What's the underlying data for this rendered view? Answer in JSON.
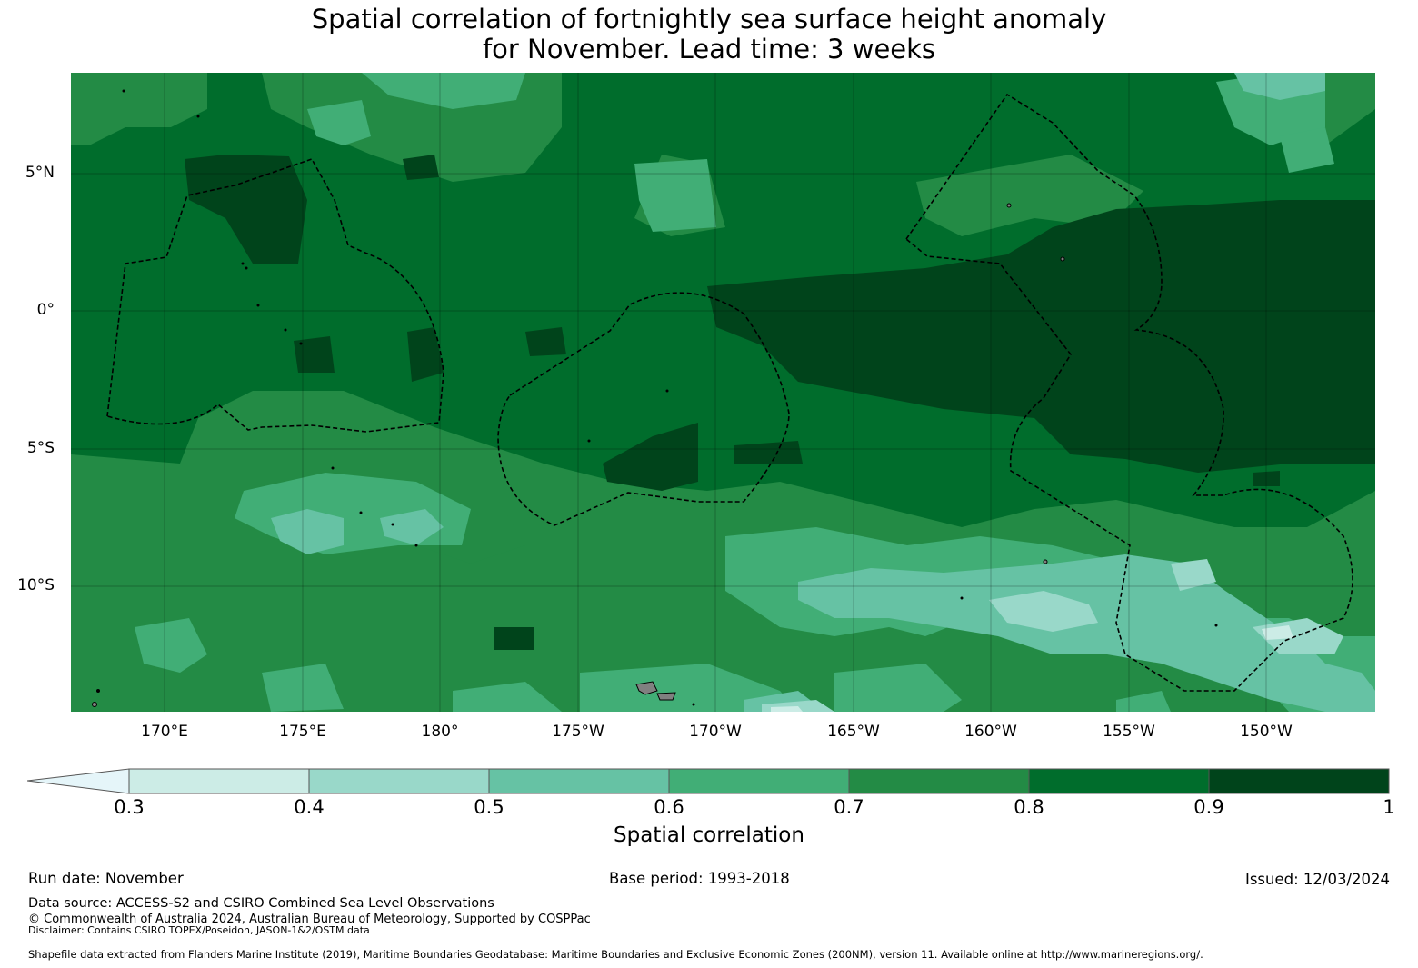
{
  "title": {
    "line1": "Spatial correlation of fortnightly sea surface height anomaly",
    "line2": "for November. Lead time: 3 weeks"
  },
  "map": {
    "lat_labels": [
      "5°N",
      "0°",
      "5°S",
      "10°S"
    ],
    "lon_labels": [
      "170°E",
      "175°E",
      "180°",
      "175°W",
      "170°W",
      "165°W",
      "160°W",
      "155°W",
      "150°W"
    ],
    "colors": {
      "c0": "#e5f5f9",
      "c1": "#ccece6",
      "c2": "#99d8c9",
      "c3": "#66c2a4",
      "c4": "#41ae76",
      "c5": "#238b45",
      "c6": "#006d2c",
      "c7": "#00441b",
      "land": "#808080"
    }
  },
  "colorbar": {
    "ticks": [
      "0.3",
      "0.4",
      "0.5",
      "0.6",
      "0.7",
      "0.8",
      "0.9",
      "1"
    ],
    "label": "Spatial correlation"
  },
  "footer": {
    "run_date": "Run date: November",
    "base_period": "Base period: 1993-2018",
    "issued": "Issued: 12/03/2024",
    "data_source": "Data source: ACCESS-S2 and CSIRO Combined Sea Level Observations",
    "copyright": "© Commonwealth of Australia 2024, Australian Bureau of Meteorology, Supported by COSPPac",
    "disclaimer": "Disclaimer: Contains CSIRO TOPEX/Poseidon, JASON-1&2/OSTM data",
    "shapefile": "Shapefile data extracted from Flanders Marine Institute (2019), Maritime Boundaries Geodatabase: Maritime Boundaries and Exclusive Economic Zones (200NM), version 11. Available online at http://www.marineregions.org/."
  }
}
